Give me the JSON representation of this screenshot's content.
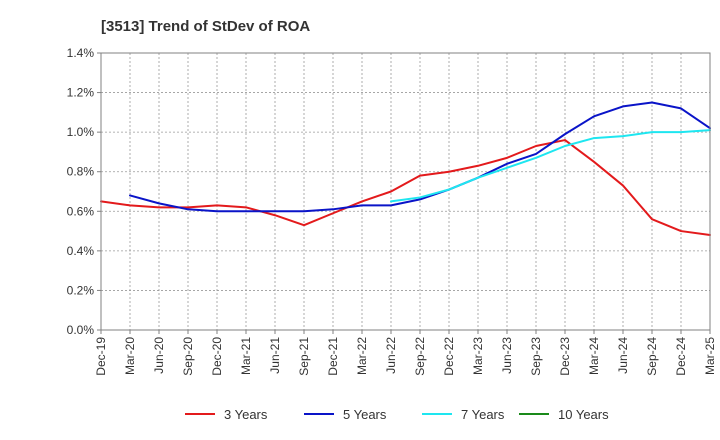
{
  "chart_data": {
    "type": "line",
    "title": "[3513]  Trend of StDev of ROA",
    "xlabel": "",
    "ylabel": "",
    "categories": [
      "Dec-19",
      "Mar-20",
      "Jun-20",
      "Sep-20",
      "Dec-20",
      "Mar-21",
      "Jun-21",
      "Sep-21",
      "Dec-21",
      "Mar-22",
      "Jun-22",
      "Sep-22",
      "Dec-22",
      "Mar-23",
      "Jun-23",
      "Sep-23",
      "Dec-23",
      "Mar-24",
      "Jun-24",
      "Sep-24",
      "Dec-24",
      "Mar-25"
    ],
    "ylim": [
      0,
      1.4
    ],
    "yticks": [
      0,
      0.2,
      0.4,
      0.6,
      0.8,
      1.0,
      1.2,
      1.4
    ],
    "ytick_labels": [
      "0.0%",
      "0.2%",
      "0.4%",
      "0.6%",
      "0.8%",
      "1.0%",
      "1.2%",
      "1.4%"
    ],
    "grid": true,
    "legend_position": "bottom",
    "series": [
      {
        "name": "3 Years",
        "color": "#e31a1c",
        "values": [
          0.65,
          0.63,
          0.62,
          0.62,
          0.63,
          0.62,
          0.58,
          0.53,
          0.59,
          0.65,
          0.7,
          0.78,
          0.8,
          0.83,
          0.87,
          0.93,
          0.96,
          0.85,
          0.73,
          0.56,
          0.5,
          0.48
        ]
      },
      {
        "name": "5 Years",
        "color": "#0a14c8",
        "values": [
          null,
          0.68,
          0.64,
          0.61,
          0.6,
          0.6,
          0.6,
          0.6,
          0.61,
          0.63,
          0.63,
          0.66,
          0.71,
          0.77,
          0.84,
          0.89,
          0.99,
          1.08,
          1.13,
          1.15,
          1.12,
          1.02
        ]
      },
      {
        "name": "7 Years",
        "color": "#1ee6f0",
        "values": [
          null,
          null,
          null,
          null,
          null,
          null,
          null,
          null,
          null,
          null,
          0.65,
          0.67,
          0.71,
          0.77,
          0.82,
          0.87,
          0.93,
          0.97,
          0.98,
          1.0,
          1.0,
          1.01
        ]
      },
      {
        "name": "10 Years",
        "color": "#1a8a1a",
        "values": [
          null,
          null,
          null,
          null,
          null,
          null,
          null,
          null,
          null,
          null,
          null,
          null,
          null,
          null,
          null,
          null,
          null,
          null,
          null,
          null,
          null,
          null
        ]
      }
    ]
  }
}
